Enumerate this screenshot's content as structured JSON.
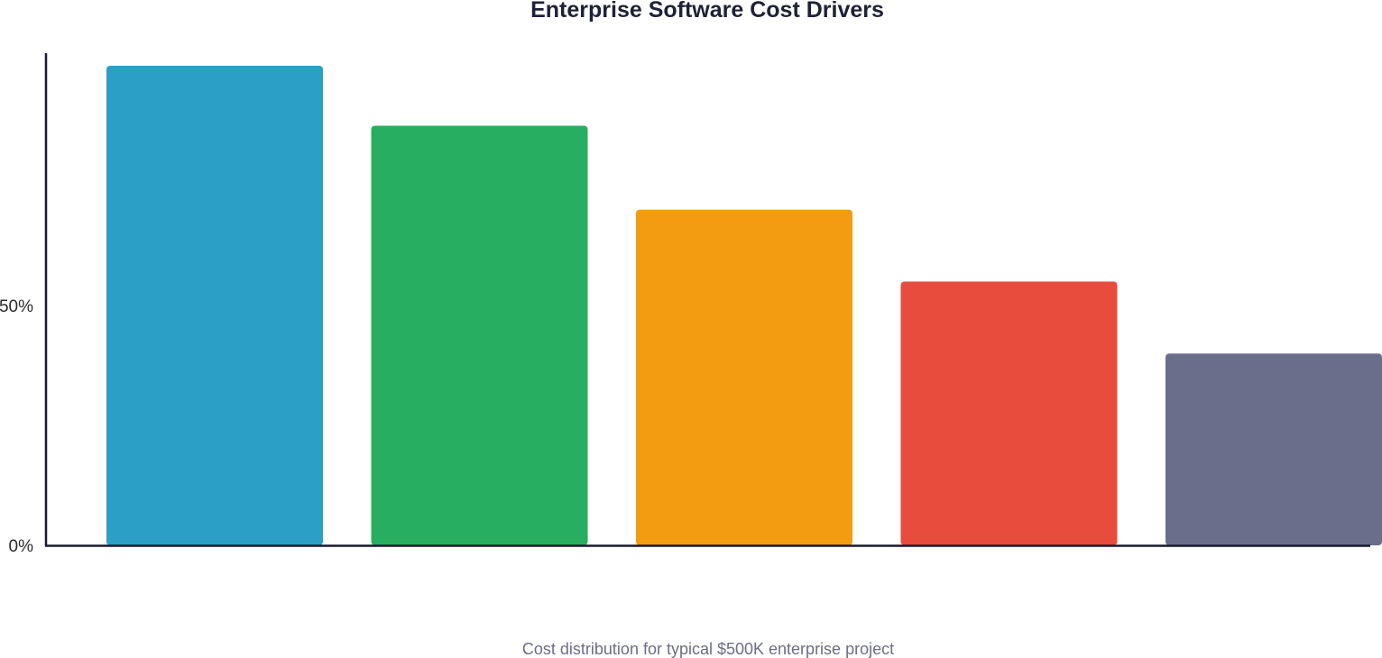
{
  "chart_data": {
    "type": "bar",
    "title": "Enterprise Software Cost Drivers",
    "subtitle": "Cost distribution for typical $500K enterprise project",
    "categories": [
      "",
      "",
      "",
      "",
      ""
    ],
    "values": [
      100,
      87.5,
      70,
      55,
      40
    ],
    "colors": [
      "#2b9fc6",
      "#27ae60",
      "#f39c12",
      "#e74c3c",
      "#6b6e8a"
    ],
    "ylim": [
      0,
      100
    ],
    "y_ticks": [
      {
        "value": 0,
        "label": "0%"
      },
      {
        "value": 50,
        "label": "50%"
      }
    ],
    "xlabel": "",
    "ylabel": "",
    "grid": false,
    "legend": "none"
  }
}
